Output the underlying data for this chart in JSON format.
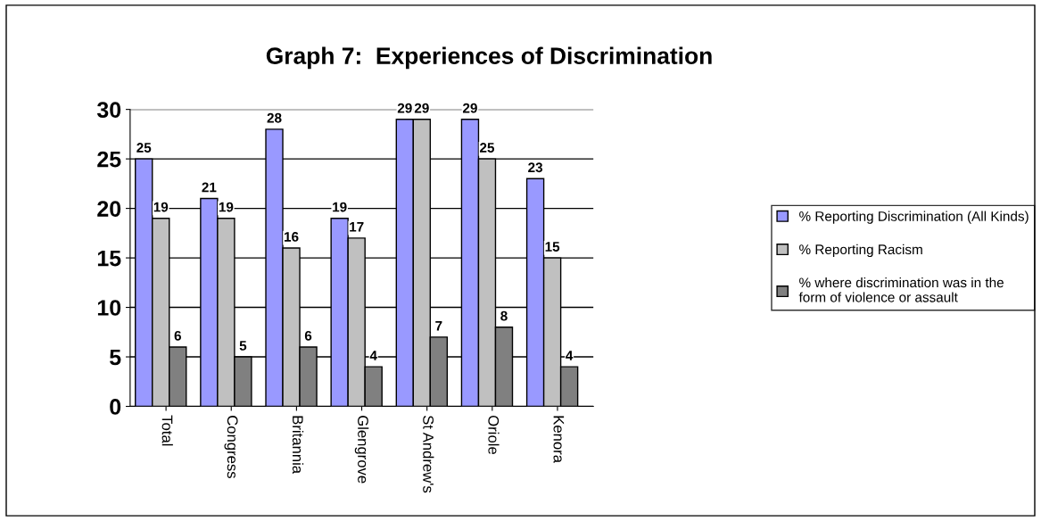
{
  "chart_data": {
    "type": "bar",
    "title": "Graph 7:  Experiences of Discrimination",
    "categories": [
      "Total",
      "Congress",
      "Britannia",
      "Glengrove",
      "St Andrew's",
      "Oriole",
      "Kenora"
    ],
    "series": [
      {
        "name": "% Reporting Discrimination (All Kinds)",
        "color": "#9999ff",
        "values": [
          25,
          21,
          28,
          19,
          29,
          29,
          23
        ]
      },
      {
        "name": "% Reporting Racism",
        "color": "#c0c0c0",
        "values": [
          19,
          19,
          16,
          17,
          29,
          25,
          15
        ]
      },
      {
        "name": "% where discrimination was in the form of violence or assault",
        "color": "#808080",
        "values": [
          6,
          5,
          6,
          4,
          7,
          8,
          4
        ]
      }
    ],
    "ylim": [
      0,
      30
    ],
    "yticks": [
      0,
      5,
      10,
      15,
      20,
      25,
      30
    ],
    "grid": "y",
    "legend": "right",
    "data_labels": true
  }
}
